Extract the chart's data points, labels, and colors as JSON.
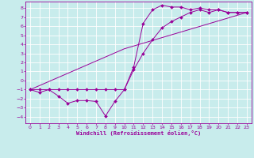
{
  "xlabel": "Windchill (Refroidissement éolien,°C)",
  "background_color": "#c8ecec",
  "line_color": "#990099",
  "grid_color": "#ffffff",
  "xlim": [
    -0.5,
    23.5
  ],
  "ylim": [
    -4.7,
    8.7
  ],
  "yticks": [
    -4,
    -3,
    -2,
    -1,
    0,
    1,
    2,
    3,
    4,
    5,
    6,
    7,
    8
  ],
  "xticks": [
    0,
    1,
    2,
    3,
    4,
    5,
    6,
    7,
    8,
    9,
    10,
    11,
    12,
    13,
    14,
    15,
    16,
    17,
    18,
    19,
    20,
    21,
    22,
    23
  ],
  "line1_x": [
    0,
    1,
    2,
    3,
    4,
    5,
    6,
    7,
    8,
    9,
    10,
    11,
    12,
    13,
    14,
    15,
    16,
    17,
    18,
    19,
    20,
    21,
    22,
    23
  ],
  "line1_y": [
    -1,
    -1.3,
    -1,
    -1.7,
    -2.5,
    -2.2,
    -2.2,
    -2.3,
    -3.9,
    -2.3,
    -1,
    1.5,
    6.3,
    7.8,
    8.3,
    8.1,
    8.1,
    7.8,
    8.0,
    7.8,
    7.8,
    7.5,
    7.5,
    7.5
  ],
  "line2_x": [
    0,
    1,
    2,
    3,
    4,
    5,
    6,
    7,
    8,
    9,
    10,
    11,
    12,
    13,
    14,
    15,
    16,
    17,
    18,
    19,
    20,
    21,
    22,
    23
  ],
  "line2_y": [
    -1,
    -1,
    -1,
    -1,
    -1,
    -1,
    -1,
    -1,
    -1,
    -1,
    -1,
    1.2,
    3.0,
    4.5,
    5.8,
    6.5,
    7.0,
    7.5,
    7.8,
    7.5,
    7.8,
    7.5,
    7.5,
    7.5
  ],
  "line3_x": [
    0,
    10,
    23
  ],
  "line3_y": [
    -1,
    3.5,
    7.5
  ]
}
